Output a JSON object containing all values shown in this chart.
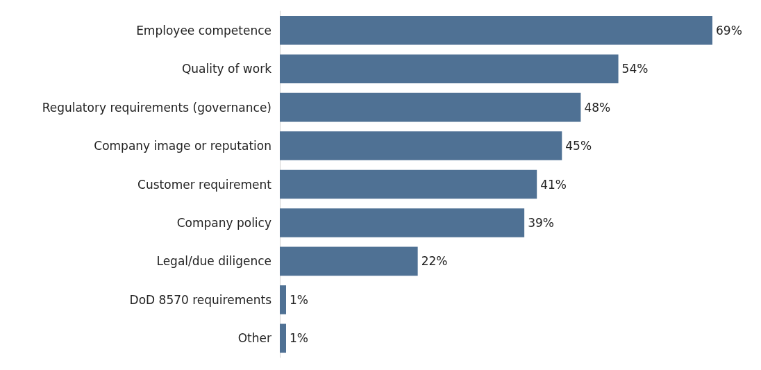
{
  "chart_data": {
    "type": "bar",
    "orientation": "horizontal",
    "categories": [
      "Employee competence",
      "Quality of work",
      "Regulatory requirements (governance)",
      "Company image or reputation",
      "Customer requirement",
      "Company policy",
      "Legal/due diligence",
      "DoD 8570 requirements",
      "Other"
    ],
    "values": [
      69,
      54,
      48,
      45,
      41,
      39,
      22,
      1,
      1
    ],
    "value_labels": [
      "69%",
      "54%",
      "48%",
      "45%",
      "41%",
      "39%",
      "22%",
      "1%",
      "1%"
    ],
    "color": "#4f7194"
  }
}
